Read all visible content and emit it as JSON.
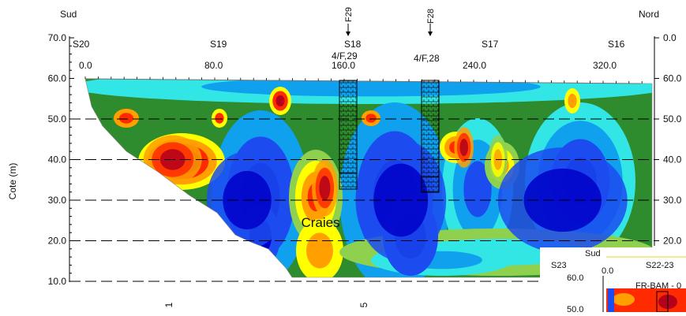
{
  "chart_data": [
    {
      "type": "heatmap",
      "title": "",
      "direction_left": "Sud",
      "direction_right": "Nord",
      "ylabel": "Cote (m)",
      "ylim": [
        10.0,
        70.0
      ],
      "y_ticks_left": [
        "70.0",
        "60.0",
        "50.0",
        "40.0",
        "30.0",
        "20.0",
        "10.0"
      ],
      "y_ticks_right": [
        "0.0",
        "60.0",
        "50.0",
        "40.0",
        "30.0",
        "20.0"
      ],
      "x_ticks": [
        "0.0",
        "80.0",
        "160.0",
        "240.0",
        "320.0"
      ],
      "x_tick_values": [
        0,
        80,
        160,
        240,
        320
      ],
      "xlim": [
        0,
        380
      ],
      "stations": [
        "S20",
        "S19",
        "S18",
        "S17",
        "S16"
      ],
      "station_positions": [
        0,
        80,
        160,
        240,
        320
      ],
      "dashed_levels": [
        50.0,
        40.0,
        30.0,
        20.0,
        10.0
      ],
      "boreholes": [
        {
          "name": "F29",
          "label": "4/F,29",
          "x": 164,
          "top": 60.0,
          "bottom": 32.0
        },
        {
          "name": "F28",
          "label": "4/F,28",
          "x": 218,
          "top": 60.0,
          "bottom": 32.0
        }
      ],
      "annotations": [
        "Craies"
      ],
      "bottom_marks": [
        "1",
        "5"
      ],
      "anomalies": [
        {
          "x": 54,
          "y": 40,
          "rx": 18,
          "ry": 6,
          "level": "high"
        },
        {
          "x": 148,
          "y": 33,
          "rx": 8,
          "ry": 7,
          "level": "high"
        },
        {
          "x": 234,
          "y": 43,
          "rx": 6,
          "ry": 5,
          "level": "high"
        },
        {
          "x": 255,
          "y": 40,
          "rx": 6,
          "ry": 6,
          "level": "medium"
        },
        {
          "x": 100,
          "y": 30,
          "rx": 25,
          "ry": 12,
          "level": "low"
        },
        {
          "x": 195,
          "y": 30,
          "rx": 28,
          "ry": 15,
          "level": "low"
        },
        {
          "x": 295,
          "y": 30,
          "rx": 40,
          "ry": 13,
          "level": "low"
        }
      ]
    },
    {
      "type": "heatmap",
      "direction_left": "Sud",
      "stations": [
        "S23",
        "S22-23"
      ],
      "y_ticks_left": [
        "60.0",
        "50.0"
      ],
      "x_ticks": [
        "0.0"
      ],
      "borehole_label": "FR-BAM - 0"
    }
  ],
  "colors": {
    "scale": [
      "#0000c8",
      "#1c4cf0",
      "#0fa0ee",
      "#33e6e6",
      "#2e8b2e",
      "#8fd14f",
      "#ffff00",
      "#ffa000",
      "#ff2a00",
      "#b3001b",
      "#7a003a"
    ]
  }
}
